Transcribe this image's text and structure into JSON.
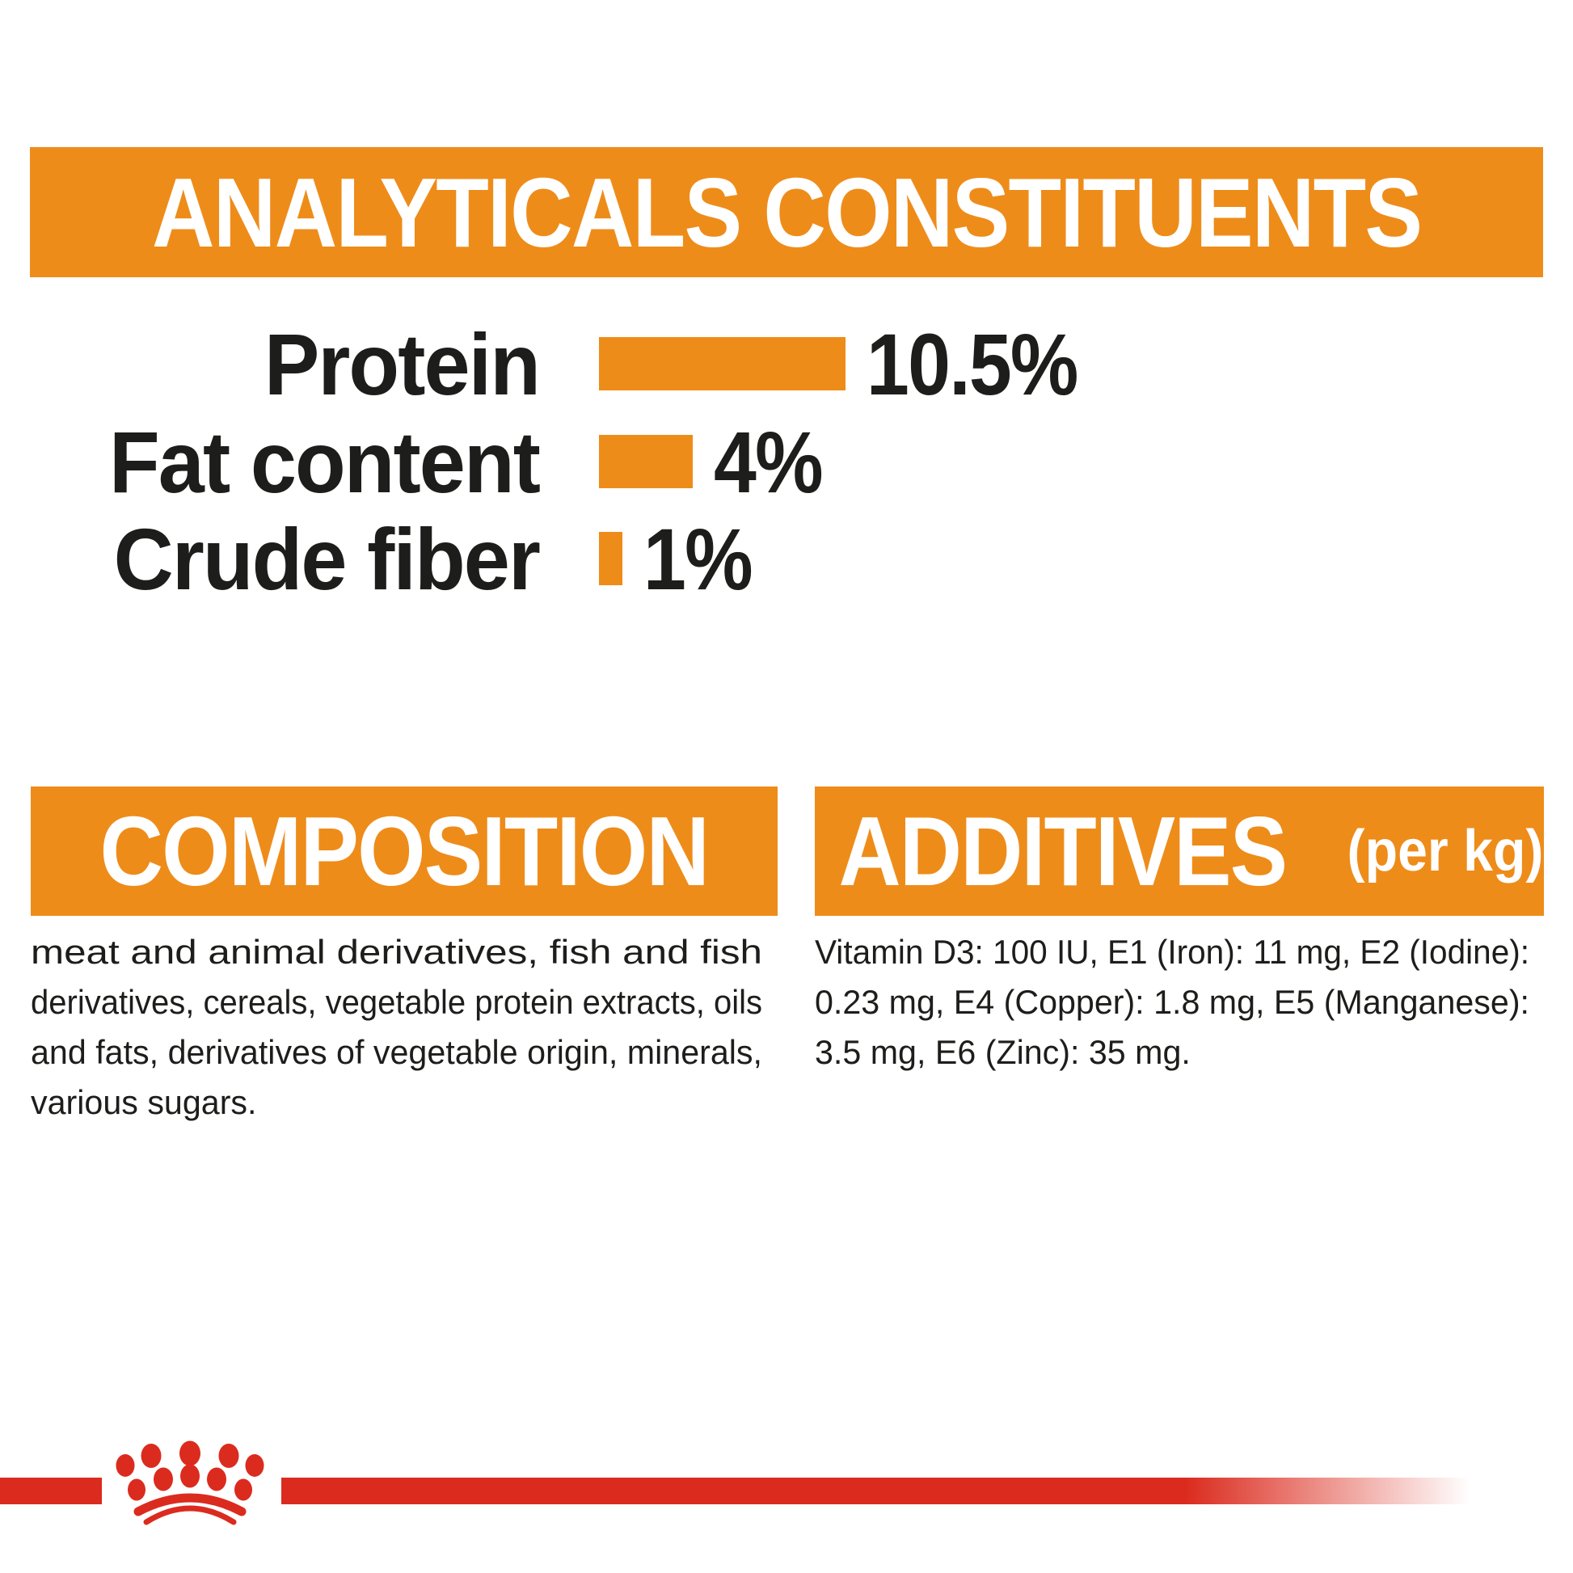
{
  "page": {
    "background": "#FFFFFF",
    "accent_orange": "#EE8C1A",
    "brand_red": "#DB2B1E",
    "text_black": "#1D1D1B",
    "heading_text_color": "#FFFFFF"
  },
  "analyticals": {
    "title": "ANALYTICALS CONSTITUENTS"
  },
  "chart_data": {
    "type": "bar",
    "orientation": "horizontal",
    "title": "ANALYTICALS CONSTITUENTS",
    "categories": [
      "Protein",
      "Fat content",
      "Crude fiber"
    ],
    "values": [
      10.5,
      4,
      1
    ],
    "value_labels": [
      "10.5%",
      "4%",
      "1%"
    ],
    "unit": "%",
    "xlim": [
      0,
      10.5
    ],
    "bar_color": "#EE8C1A",
    "label_color": "#1D1D1B",
    "grid": false,
    "legend": false
  },
  "composition": {
    "title": "COMPOSITION",
    "body_lines": [
      "meat and animal derivatives, fish and fish",
      "derivatives, cereals, vegetable protein extracts, oils",
      "and fats, derivatives of vegetable origin, minerals,",
      "various sugars."
    ]
  },
  "additives": {
    "title": "ADDITIVES",
    "title_suffix": "(per kg)",
    "body_lines": [
      "Vitamin D3: 100 IU, E1 (Iron): 11 mg, E2 (Iodine):",
      "0.23 mg, E4 (Copper): 1.8 mg, E5 (Manganese):",
      "3.5 mg, E6 (Zinc): 35 mg."
    ]
  },
  "footer": {
    "logo": "royal-canin-crown-paw-logo"
  }
}
